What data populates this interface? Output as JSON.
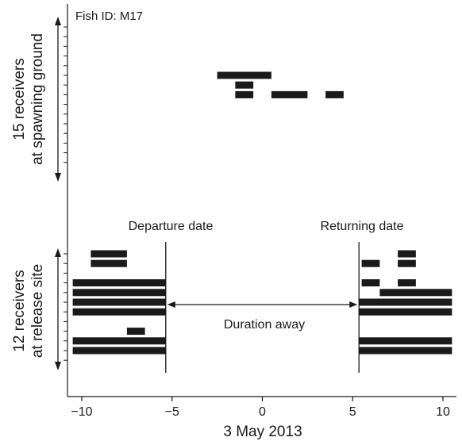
{
  "chart_data": {
    "type": "timeline",
    "annotation_id": "Fish ID: M17",
    "xlabel": "3 May 2013",
    "xlim": [
      -11,
      11
    ],
    "xticks": [
      -10,
      -5,
      0,
      5,
      10
    ],
    "group_labels": {
      "spawning": [
        "15 receivers",
        "at spawning ground"
      ],
      "release": [
        "12 receivers",
        "at release site"
      ]
    },
    "markers": {
      "departure": {
        "label": "Departure date",
        "x": -5.35
      },
      "returning": {
        "label": "Returning date",
        "x": 5.35
      },
      "duration": {
        "label": "Duration away"
      }
    },
    "detections": [
      {
        "group": "spawning",
        "receiver": 6,
        "start": -2.5,
        "end": 0.5
      },
      {
        "group": "spawning",
        "receiver": 7,
        "start": -1.5,
        "end": -0.5
      },
      {
        "group": "spawning",
        "receiver": 8,
        "start": -1.5,
        "end": -0.5
      },
      {
        "group": "spawning",
        "receiver": 8,
        "start": 0.5,
        "end": 2.5
      },
      {
        "group": "spawning",
        "receiver": 8,
        "start": 3.5,
        "end": 4.5
      },
      {
        "group": "release",
        "receiver": 1,
        "start": -9.5,
        "end": -7.5
      },
      {
        "group": "release",
        "receiver": 1,
        "start": 7.5,
        "end": 8.5
      },
      {
        "group": "release",
        "receiver": 2,
        "start": -9.5,
        "end": -7.5
      },
      {
        "group": "release",
        "receiver": 2,
        "start": 5.5,
        "end": 6.5
      },
      {
        "group": "release",
        "receiver": 2,
        "start": 7.5,
        "end": 8.5
      },
      {
        "group": "release",
        "receiver": 4,
        "start": -10.5,
        "end": -5.35
      },
      {
        "group": "release",
        "receiver": 4,
        "start": 5.5,
        "end": 6.5
      },
      {
        "group": "release",
        "receiver": 4,
        "start": 7.5,
        "end": 8.5
      },
      {
        "group": "release",
        "receiver": 5,
        "start": -10.5,
        "end": -5.35
      },
      {
        "group": "release",
        "receiver": 5,
        "start": 6.5,
        "end": 10.5
      },
      {
        "group": "release",
        "receiver": 6,
        "start": -10.5,
        "end": -5.35
      },
      {
        "group": "release",
        "receiver": 6,
        "start": 5.35,
        "end": 10.5
      },
      {
        "group": "release",
        "receiver": 7,
        "start": -10.5,
        "end": -5.35
      },
      {
        "group": "release",
        "receiver": 7,
        "start": 5.35,
        "end": 10.5
      },
      {
        "group": "release",
        "receiver": 9,
        "start": -7.5,
        "end": -6.5
      },
      {
        "group": "release",
        "receiver": 10,
        "start": -10.5,
        "end": -5.35
      },
      {
        "group": "release",
        "receiver": 10,
        "start": 5.35,
        "end": 10.5
      },
      {
        "group": "release",
        "receiver": 11,
        "start": -10.5,
        "end": -5.35
      },
      {
        "group": "release",
        "receiver": 11,
        "start": 5.35,
        "end": 10.5
      }
    ],
    "receiver_counts": {
      "spawning": 15,
      "release": 12
    },
    "grid": false,
    "bar_color": "#1a1a1a"
  }
}
